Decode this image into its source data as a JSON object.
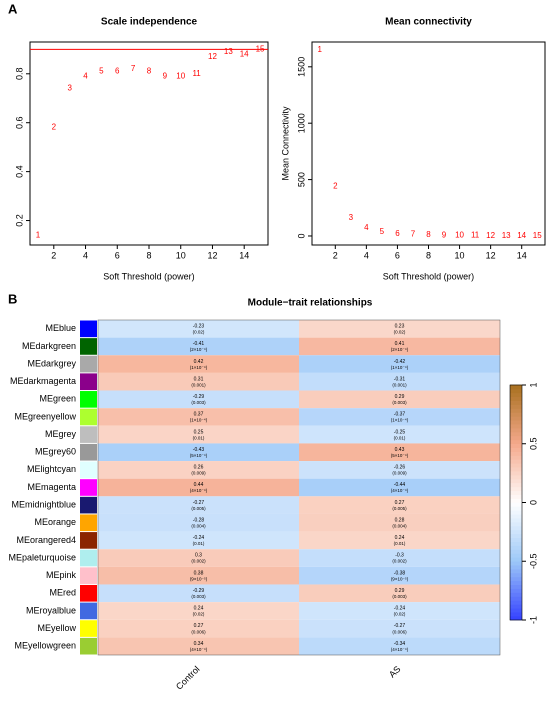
{
  "panel_labels": [
    "A",
    "B"
  ],
  "chart_data": [
    {
      "type": "scatter",
      "marker": "text",
      "title": "Scale independence",
      "xlabel": "Soft Threshold (power)",
      "color": "#ff0000",
      "x": [
        1,
        2,
        3,
        4,
        5,
        6,
        7,
        8,
        9,
        10,
        11,
        12,
        13,
        14,
        15
      ],
      "values": [
        0.14,
        0.58,
        0.74,
        0.79,
        0.81,
        0.81,
        0.82,
        0.81,
        0.79,
        0.79,
        0.8,
        0.87,
        0.89,
        0.88,
        0.9
      ],
      "hline": 0.9,
      "xlim": [
        0.5,
        15.5
      ],
      "ylim": [
        0.1,
        0.93
      ],
      "xticks": [
        2,
        4,
        6,
        8,
        10,
        12,
        14
      ],
      "yticks": [
        0.2,
        0.4,
        0.6,
        0.8
      ]
    },
    {
      "type": "scatter",
      "marker": "text",
      "title": "Mean connectivity",
      "xlabel": "Soft Threshold (power)",
      "ylabel": "Mean Connectivity",
      "color": "#ff0000",
      "x": [
        1,
        2,
        3,
        4,
        5,
        6,
        7,
        8,
        9,
        10,
        11,
        12,
        13,
        14,
        15
      ],
      "values": [
        1650,
        440,
        160,
        70,
        35,
        20,
        12,
        8,
        5,
        4,
        3,
        2,
        1.5,
        1,
        1
      ],
      "xlim": [
        0.5,
        15.5
      ],
      "ylim": [
        -80,
        1720
      ],
      "xticks": [
        2,
        4,
        6,
        8,
        10,
        12,
        14
      ],
      "yticks": [
        0,
        500,
        1000,
        1500
      ]
    },
    {
      "type": "heatmap",
      "title": "Module−trait relationships",
      "rows": [
        "MEblue",
        "MEdarkgreen",
        "MEdarkgrey",
        "MEdarkmagenta",
        "MEgreen",
        "MEgreenyellow",
        "MEgrey",
        "MEgrey60",
        "MElightcyan",
        "MEmagenta",
        "MEmidnightblue",
        "MEorange",
        "MEorangered4",
        "MEpaleturquoise",
        "MEpink",
        "MEred",
        "MEroyalblue",
        "MEyellow",
        "MEyellowgreen"
      ],
      "row_colors": [
        "#0000ff",
        "#006400",
        "#a9a9a9",
        "#8b008b",
        "#00ff00",
        "#adff2f",
        "#bebebe",
        "#999999",
        "#e0ffff",
        "#ff00ff",
        "#191970",
        "#ffa500",
        "#8b2500",
        "#afeeee",
        "#ffc0cb",
        "#ff0000",
        "#4169e1",
        "#ffff00",
        "#9acd32"
      ],
      "columns": [
        "Control",
        "AS"
      ],
      "values": [
        [
          -0.23,
          0.23
        ],
        [
          -0.41,
          0.41
        ],
        [
          0.42,
          -0.42
        ],
        [
          0.31,
          -0.31
        ],
        [
          -0.29,
          0.29
        ],
        [
          0.37,
          -0.37
        ],
        [
          0.25,
          -0.25
        ],
        [
          -0.43,
          0.43
        ],
        [
          0.26,
          -0.26
        ],
        [
          0.44,
          -0.44
        ],
        [
          -0.27,
          0.27
        ],
        [
          -0.28,
          0.28
        ],
        [
          -0.24,
          0.24
        ],
        [
          0.3,
          -0.3
        ],
        [
          0.38,
          -0.38
        ],
        [
          -0.29,
          0.29
        ],
        [
          0.24,
          -0.24
        ],
        [
          0.27,
          -0.27
        ],
        [
          0.34,
          -0.34
        ]
      ],
      "p_labels": [
        [
          "(0.02)",
          "(0.02)"
        ],
        [
          "(2×10⁻⁴)",
          "(2×10⁻⁴)"
        ],
        [
          "(1×10⁻⁴)",
          "(1×10⁻⁴)"
        ],
        [
          "(0.001)",
          "(0.001)"
        ],
        [
          "(0.003)",
          "(0.003)"
        ],
        [
          "(1×10⁻⁴)",
          "(1×10⁻⁴)"
        ],
        [
          "(0.01)",
          "(0.01)"
        ],
        [
          "(5×10⁻⁴)",
          "(5×10⁻⁴)"
        ],
        [
          "(0.009)",
          "(0.009)"
        ],
        [
          "(4×10⁻⁴)",
          "(4×10⁻⁴)"
        ],
        [
          "(0.005)",
          "(0.005)"
        ],
        [
          "(0.004)",
          "(0.004)"
        ],
        [
          "(0.01)",
          "(0.01)"
        ],
        [
          "(0.002)",
          "(0.002)"
        ],
        [
          "(9×10⁻⁵)",
          "(9×10⁻⁵)"
        ],
        [
          "(0.003)",
          "(0.003)"
        ],
        [
          "(0.02)",
          "(0.02)"
        ],
        [
          "(0.006)",
          "(0.006)"
        ],
        [
          "(4×10⁻⁴)",
          "(4×10⁻⁴)"
        ]
      ],
      "zlim": [
        -1,
        1
      ],
      "zticks": [
        -1,
        -0.5,
        0,
        0.5,
        1
      ],
      "colorscale": [
        [
          -1,
          "#3340ff"
        ],
        [
          -0.5,
          "#9cc8f8"
        ],
        [
          0,
          "#ffffff"
        ],
        [
          0.5,
          "#f5a98c"
        ],
        [
          1,
          "#a8701f"
        ]
      ]
    }
  ]
}
